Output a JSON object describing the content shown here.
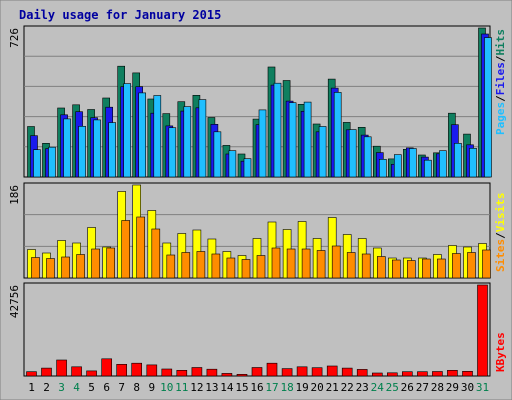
{
  "chart_data": {
    "type": "bar",
    "title": "Daily usage for January 2015",
    "categories": [
      "1",
      "2",
      "3",
      "4",
      "5",
      "6",
      "7",
      "8",
      "9",
      "10",
      "11",
      "12",
      "13",
      "14",
      "15",
      "16",
      "17",
      "18",
      "19",
      "20",
      "21",
      "22",
      "23",
      "24",
      "25",
      "26",
      "27",
      "28",
      "29",
      "30",
      "31"
    ],
    "weekend_days": [
      "3",
      "4",
      "10",
      "11",
      "17",
      "18",
      "24",
      "25",
      "31"
    ],
    "panels": [
      {
        "name": "top",
        "ymax_label": "726",
        "ylim": [
          0,
          726
        ],
        "series": [
          {
            "name": "Hits",
            "color": "#0f7f5f",
            "values": [
              246,
              164,
              336,
              352,
              329,
              385,
              540,
              507,
              380,
              309,
              367,
              398,
              290,
              154,
              112,
              282,
              536,
              470,
              354,
              258,
              477,
              266,
              242,
              150,
              88,
              135,
              107,
              118,
              311,
              209,
              726
            ]
          },
          {
            "name": "Files",
            "color": "#1a1aee",
            "values": [
              201,
              138,
              303,
              318,
              289,
              340,
              440,
              440,
              311,
              249,
              321,
              337,
              257,
              112,
              77,
              255,
              448,
              370,
              320,
              220,
              433,
              230,
              204,
              119,
              62,
              142,
              97,
              113,
              255,
              157,
              697
            ]
          },
          {
            "name": "Pages",
            "color": "#20bfff",
            "values": [
              133,
              145,
              283,
              247,
              278,
              265,
              455,
              410,
              397,
              240,
              343,
              377,
              220,
              128,
              89,
              327,
              457,
              362,
              365,
              246,
              412,
              231,
              196,
              86,
              109,
              139,
              82,
              128,
              164,
              140,
              679
            ]
          }
        ]
      },
      {
        "name": "middle",
        "ymax_label": "186",
        "ylim": [
          0,
          186
        ],
        "series": [
          {
            "name": "Visits",
            "color": "#ffff00",
            "values": [
              57,
              50,
              75,
              70,
              101,
              62,
              173,
              186,
              135,
              70,
              89,
              96,
              78,
              53,
              45,
              79,
              112,
              97,
              113,
              79,
              121,
              87,
              79,
              60,
              40,
              40,
              40,
              47,
              65,
              62,
              69
            ]
          },
          {
            "name": "Sites",
            "color": "#ff8c00",
            "values": [
              41,
              39,
              42,
              47,
              58,
              60,
              115,
              122,
              98,
              46,
              51,
              53,
              48,
              40,
              37,
              45,
              60,
              58,
              58,
              55,
              64,
              51,
              48,
              43,
              36,
              35,
              38,
              38,
              49,
              51,
              56
            ]
          }
        ]
      },
      {
        "name": "bottom",
        "ymax_label": "42756",
        "ylim": [
          0,
          42756
        ],
        "series": [
          {
            "name": "KBytes",
            "color": "#ff0000",
            "values": [
              2000,
              3700,
              7500,
              4300,
              2400,
              8100,
              5500,
              6000,
              5200,
              3300,
              2700,
              4000,
              3200,
              1200,
              800,
              4000,
              6000,
              3500,
              4300,
              3900,
              4700,
              3700,
              3100,
              1400,
              1500,
              2000,
              2000,
              2100,
              2700,
              2200,
              42756
            ]
          }
        ]
      }
    ],
    "legend": {
      "top": [
        "Pages",
        "Files",
        "Hits"
      ],
      "middle": [
        "Sites",
        "Visits"
      ],
      "bottom": [
        "KBytes"
      ],
      "separator": "/"
    },
    "colors": {
      "background": "#c0c0c0",
      "frame": "#808080",
      "title": "#0000a0",
      "grid": "#808080",
      "weekday_label": "#000000",
      "weekend_label": "#00804d"
    }
  }
}
